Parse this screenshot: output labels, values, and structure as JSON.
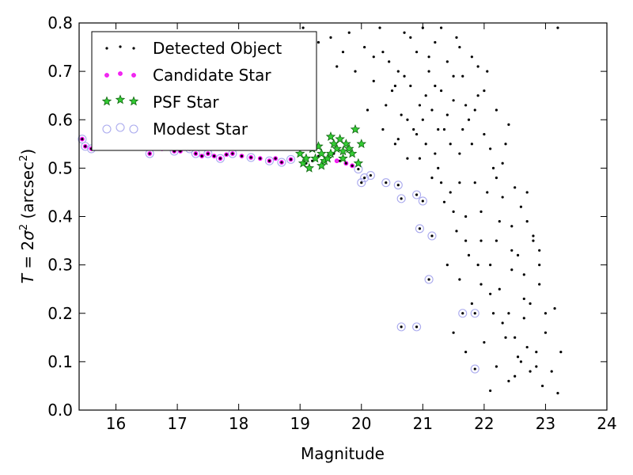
{
  "chart_data": {
    "type": "scatter",
    "xlabel": "Magnitude",
    "ylabel": {
      "parts": [
        "T",
        " = 2",
        "σ",
        "2",
        " (arcsec",
        "2",
        ")"
      ]
    },
    "xlim": [
      15.4,
      24
    ],
    "ylim": [
      0.0,
      0.8
    ],
    "xticks": [
      16,
      17,
      18,
      19,
      20,
      21,
      22,
      23,
      24
    ],
    "yticks": [
      0.0,
      0.1,
      0.2,
      0.3,
      0.4,
      0.5,
      0.6,
      0.7,
      0.8
    ],
    "xtick_labels": [
      "16",
      "17",
      "18",
      "19",
      "20",
      "21",
      "22",
      "23",
      "24"
    ],
    "ytick_labels": [
      "0.0",
      "0.1",
      "0.2",
      "0.3",
      "0.4",
      "0.5",
      "0.6",
      "0.7",
      "0.8"
    ],
    "grid": false,
    "legend": {
      "position": "top-left"
    },
    "series": [
      {
        "name": "Detected Object",
        "marker": "dot",
        "color": "#000000",
        "points": [
          [
            15.45,
            0.56
          ],
          [
            15.5,
            0.545
          ],
          [
            15.6,
            0.54
          ],
          [
            15.65,
            0.55
          ],
          [
            15.8,
            0.555
          ],
          [
            15.9,
            0.545
          ],
          [
            16.05,
            0.55
          ],
          [
            16.2,
            0.545
          ],
          [
            16.4,
            0.548
          ],
          [
            16.55,
            0.53
          ],
          [
            16.65,
            0.545
          ],
          [
            16.75,
            0.54
          ],
          [
            16.85,
            0.55
          ],
          [
            16.95,
            0.535
          ],
          [
            17.05,
            0.535
          ],
          [
            17.2,
            0.54
          ],
          [
            17.3,
            0.53
          ],
          [
            17.4,
            0.525
          ],
          [
            17.5,
            0.53
          ],
          [
            17.6,
            0.525
          ],
          [
            17.7,
            0.52
          ],
          [
            17.8,
            0.528
          ],
          [
            17.9,
            0.53
          ],
          [
            18.05,
            0.525
          ],
          [
            18.2,
            0.522
          ],
          [
            18.35,
            0.52
          ],
          [
            18.5,
            0.515
          ],
          [
            18.6,
            0.52
          ],
          [
            18.7,
            0.512
          ],
          [
            18.85,
            0.518
          ],
          [
            19.0,
            0.53
          ],
          [
            19.1,
            0.51
          ],
          [
            19.2,
            0.515
          ],
          [
            19.3,
            0.525
          ],
          [
            19.45,
            0.52
          ],
          [
            19.55,
            0.53
          ],
          [
            19.65,
            0.515
          ],
          [
            19.75,
            0.51
          ],
          [
            19.85,
            0.505
          ],
          [
            19.95,
            0.498
          ],
          [
            20.0,
            0.47
          ],
          [
            20.05,
            0.48
          ],
          [
            20.15,
            0.485
          ],
          [
            20.4,
            0.47
          ],
          [
            20.6,
            0.465
          ],
          [
            20.65,
            0.437
          ],
          [
            20.9,
            0.445
          ],
          [
            21.0,
            0.432
          ],
          [
            20.95,
            0.375
          ],
          [
            21.15,
            0.36
          ],
          [
            21.1,
            0.27
          ],
          [
            20.65,
            0.172
          ],
          [
            20.9,
            0.172
          ],
          [
            21.65,
            0.2
          ],
          [
            21.85,
            0.2
          ],
          [
            21.85,
            0.085
          ],
          [
            19.05,
            0.79
          ],
          [
            19.15,
            0.78
          ],
          [
            19.3,
            0.76
          ],
          [
            19.5,
            0.77
          ],
          [
            19.6,
            0.71
          ],
          [
            19.7,
            0.74
          ],
          [
            19.8,
            0.78
          ],
          [
            19.9,
            0.7
          ],
          [
            20.05,
            0.75
          ],
          [
            20.1,
            0.62
          ],
          [
            20.2,
            0.68
          ],
          [
            20.3,
            0.79
          ],
          [
            20.35,
            0.58
          ],
          [
            20.45,
            0.72
          ],
          [
            20.5,
            0.66
          ],
          [
            20.55,
            0.55
          ],
          [
            20.6,
            0.7
          ],
          [
            20.65,
            0.61
          ],
          [
            20.7,
            0.78
          ],
          [
            20.75,
            0.52
          ],
          [
            20.8,
            0.67
          ],
          [
            20.85,
            0.58
          ],
          [
            20.9,
            0.74
          ],
          [
            20.95,
            0.63
          ],
          [
            21.0,
            0.79
          ],
          [
            21.05,
            0.55
          ],
          [
            21.1,
            0.7
          ],
          [
            21.15,
            0.62
          ],
          [
            21.2,
            0.76
          ],
          [
            21.25,
            0.5
          ],
          [
            21.3,
            0.66
          ],
          [
            21.35,
            0.58
          ],
          [
            21.4,
            0.72
          ],
          [
            21.45,
            0.45
          ],
          [
            21.5,
            0.64
          ],
          [
            21.55,
            0.77
          ],
          [
            21.6,
            0.53
          ],
          [
            21.65,
            0.69
          ],
          [
            21.7,
            0.4
          ],
          [
            21.75,
            0.6
          ],
          [
            21.8,
            0.73
          ],
          [
            21.85,
            0.47
          ],
          [
            21.9,
            0.65
          ],
          [
            21.95,
            0.35
          ],
          [
            22.0,
            0.57
          ],
          [
            22.05,
            0.7
          ],
          [
            22.1,
            0.3
          ],
          [
            22.15,
            0.5
          ],
          [
            22.2,
            0.62
          ],
          [
            22.25,
            0.25
          ],
          [
            22.3,
            0.44
          ],
          [
            22.35,
            0.55
          ],
          [
            22.4,
            0.2
          ],
          [
            22.45,
            0.38
          ],
          [
            22.5,
            0.15
          ],
          [
            22.55,
            0.32
          ],
          [
            22.6,
            0.1
          ],
          [
            22.65,
            0.28
          ],
          [
            22.7,
            0.45
          ],
          [
            22.75,
            0.22
          ],
          [
            22.8,
            0.35
          ],
          [
            22.85,
            0.12
          ],
          [
            22.9,
            0.3
          ],
          [
            22.95,
            0.05
          ],
          [
            23.0,
            0.2
          ],
          [
            23.1,
            0.08
          ],
          [
            23.15,
            0.21
          ],
          [
            23.2,
            0.035
          ],
          [
            23.25,
            0.12
          ],
          [
            23.2,
            0.79
          ],
          [
            20.2,
            0.73
          ],
          [
            20.4,
            0.63
          ],
          [
            20.6,
            0.56
          ],
          [
            20.8,
            0.77
          ],
          [
            21.0,
            0.6
          ],
          [
            21.2,
            0.67
          ],
          [
            21.4,
            0.61
          ],
          [
            21.6,
            0.75
          ],
          [
            21.8,
            0.55
          ],
          [
            22.0,
            0.66
          ],
          [
            22.2,
            0.48
          ],
          [
            22.4,
            0.59
          ],
          [
            22.6,
            0.42
          ],
          [
            22.8,
            0.36
          ],
          [
            21.3,
            0.47
          ],
          [
            21.5,
            0.41
          ],
          [
            21.7,
            0.35
          ],
          [
            21.9,
            0.3
          ],
          [
            22.1,
            0.24
          ],
          [
            22.3,
            0.18
          ],
          [
            21.4,
            0.3
          ],
          [
            21.6,
            0.27
          ],
          [
            21.8,
            0.22
          ],
          [
            22.0,
            0.14
          ],
          [
            22.2,
            0.09
          ],
          [
            22.4,
            0.06
          ],
          [
            21.5,
            0.16
          ],
          [
            21.7,
            0.12
          ],
          [
            22.1,
            0.04
          ],
          [
            22.5,
            0.07
          ],
          [
            22.7,
            0.13
          ],
          [
            22.9,
            0.26
          ],
          [
            23.0,
            0.16
          ],
          [
            20.7,
            0.69
          ],
          [
            20.9,
            0.57
          ],
          [
            21.1,
            0.73
          ],
          [
            21.3,
            0.79
          ],
          [
            21.5,
            0.69
          ],
          [
            21.7,
            0.63
          ],
          [
            21.9,
            0.71
          ],
          [
            22.1,
            0.54
          ],
          [
            22.3,
            0.51
          ],
          [
            22.5,
            0.46
          ],
          [
            22.7,
            0.39
          ],
          [
            22.9,
            0.33
          ],
          [
            21.2,
            0.53
          ],
          [
            21.6,
            0.47
          ],
          [
            21.95,
            0.41
          ],
          [
            22.2,
            0.35
          ],
          [
            22.45,
            0.29
          ],
          [
            22.65,
            0.19
          ],
          [
            22.85,
            0.09
          ],
          [
            21.05,
            0.65
          ],
          [
            21.25,
            0.58
          ],
          [
            21.45,
            0.55
          ],
          [
            21.65,
            0.58
          ],
          [
            21.85,
            0.62
          ],
          [
            22.05,
            0.45
          ],
          [
            22.25,
            0.39
          ],
          [
            22.45,
            0.33
          ],
          [
            22.65,
            0.23
          ],
          [
            20.35,
            0.74
          ],
          [
            20.55,
            0.67
          ],
          [
            20.75,
            0.6
          ],
          [
            20.95,
            0.52
          ],
          [
            21.15,
            0.48
          ],
          [
            21.35,
            0.43
          ],
          [
            21.55,
            0.37
          ],
          [
            21.75,
            0.32
          ],
          [
            21.95,
            0.26
          ],
          [
            22.15,
            0.2
          ],
          [
            22.35,
            0.15
          ],
          [
            22.55,
            0.11
          ],
          [
            22.75,
            0.08
          ]
        ]
      },
      {
        "name": "Candidate Star",
        "marker": "small-circle",
        "color": "#ff00ff",
        "points": [
          [
            15.45,
            0.56
          ],
          [
            15.5,
            0.545
          ],
          [
            15.6,
            0.54
          ],
          [
            15.8,
            0.555
          ],
          [
            16.05,
            0.55
          ],
          [
            16.2,
            0.545
          ],
          [
            16.55,
            0.53
          ],
          [
            16.65,
            0.545
          ],
          [
            16.75,
            0.54
          ],
          [
            16.95,
            0.535
          ],
          [
            17.05,
            0.535
          ],
          [
            17.2,
            0.54
          ],
          [
            17.3,
            0.53
          ],
          [
            17.4,
            0.525
          ],
          [
            17.5,
            0.53
          ],
          [
            17.6,
            0.525
          ],
          [
            17.7,
            0.52
          ],
          [
            17.8,
            0.528
          ],
          [
            17.9,
            0.53
          ],
          [
            18.05,
            0.525
          ],
          [
            18.2,
            0.522
          ],
          [
            18.35,
            0.52
          ],
          [
            18.5,
            0.515
          ],
          [
            18.6,
            0.52
          ],
          [
            18.7,
            0.512
          ],
          [
            18.85,
            0.518
          ],
          [
            19.6,
            0.515
          ],
          [
            19.75,
            0.51
          ],
          [
            19.85,
            0.505
          ]
        ]
      },
      {
        "name": "PSF Star",
        "marker": "star",
        "color": "#22aa22",
        "points": [
          [
            19.0,
            0.53
          ],
          [
            19.05,
            0.51
          ],
          [
            19.1,
            0.52
          ],
          [
            19.15,
            0.5
          ],
          [
            19.2,
            0.54
          ],
          [
            19.25,
            0.52
          ],
          [
            19.3,
            0.545
          ],
          [
            19.35,
            0.53
          ],
          [
            19.4,
            0.515
          ],
          [
            19.45,
            0.52
          ],
          [
            19.5,
            0.565
          ],
          [
            19.55,
            0.55
          ],
          [
            19.6,
            0.54
          ],
          [
            19.65,
            0.56
          ],
          [
            19.7,
            0.535
          ],
          [
            19.75,
            0.55
          ],
          [
            19.8,
            0.54
          ],
          [
            19.85,
            0.53
          ],
          [
            19.9,
            0.58
          ],
          [
            19.95,
            0.51
          ],
          [
            20.0,
            0.55
          ],
          [
            19.5,
            0.53
          ],
          [
            19.7,
            0.52
          ],
          [
            19.35,
            0.505
          ]
        ]
      },
      {
        "name": "Modest Star",
        "marker": "open-circle",
        "color": "#aaaaee",
        "points": [
          [
            15.45,
            0.56
          ],
          [
            15.5,
            0.545
          ],
          [
            15.6,
            0.54
          ],
          [
            15.8,
            0.555
          ],
          [
            16.05,
            0.55
          ],
          [
            16.55,
            0.53
          ],
          [
            16.65,
            0.545
          ],
          [
            16.95,
            0.535
          ],
          [
            17.2,
            0.54
          ],
          [
            17.3,
            0.53
          ],
          [
            17.5,
            0.53
          ],
          [
            17.7,
            0.52
          ],
          [
            17.9,
            0.53
          ],
          [
            18.2,
            0.522
          ],
          [
            18.5,
            0.515
          ],
          [
            18.7,
            0.512
          ],
          [
            18.85,
            0.518
          ],
          [
            19.95,
            0.498
          ],
          [
            20.0,
            0.47
          ],
          [
            20.05,
            0.48
          ],
          [
            20.15,
            0.485
          ],
          [
            20.4,
            0.47
          ],
          [
            20.6,
            0.465
          ],
          [
            20.65,
            0.437
          ],
          [
            20.9,
            0.445
          ],
          [
            21.0,
            0.432
          ],
          [
            20.95,
            0.375
          ],
          [
            21.15,
            0.36
          ],
          [
            21.1,
            0.27
          ],
          [
            20.65,
            0.172
          ],
          [
            20.9,
            0.172
          ],
          [
            21.65,
            0.2
          ],
          [
            21.85,
            0.2
          ],
          [
            21.85,
            0.085
          ]
        ]
      }
    ]
  }
}
